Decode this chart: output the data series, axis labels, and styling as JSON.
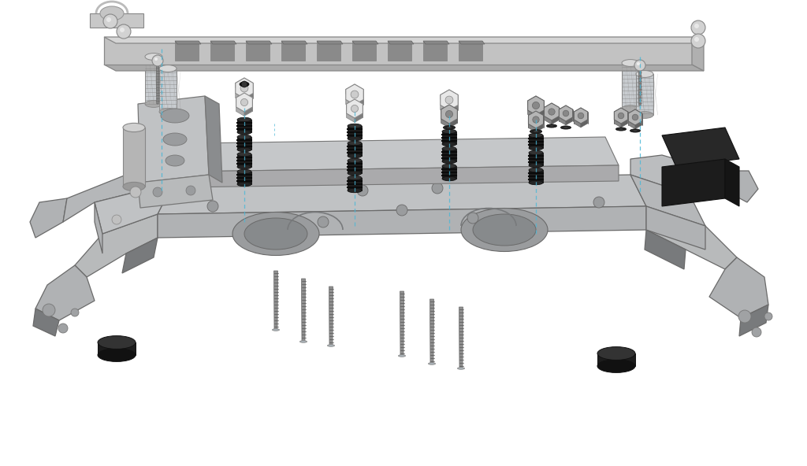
{
  "background_color": "#ffffff",
  "frame_top": "#d2d2d2",
  "frame_mid": "#b8b8b8",
  "frame_bot": "#9a9a9a",
  "frame_dark": "#7a7a7a",
  "frame_shadow": "#888888",
  "black_part": "#252525",
  "dark_gray": "#3a3a3a",
  "med_gray": "#606060",
  "standoff_light": "#d0d4d8",
  "standoff_dark": "#7a8090",
  "screw_color": "#909090",
  "nut_light": "#e8e8e8",
  "nut_med": "#b5b5b5",
  "nut_dark": "#909090",
  "rubber_top": "#333333",
  "rubber_side": "#1a1a1a",
  "cyan_line": "#4ab8d8",
  "figsize": [
    10.24,
    5.92
  ],
  "dpi": 100
}
